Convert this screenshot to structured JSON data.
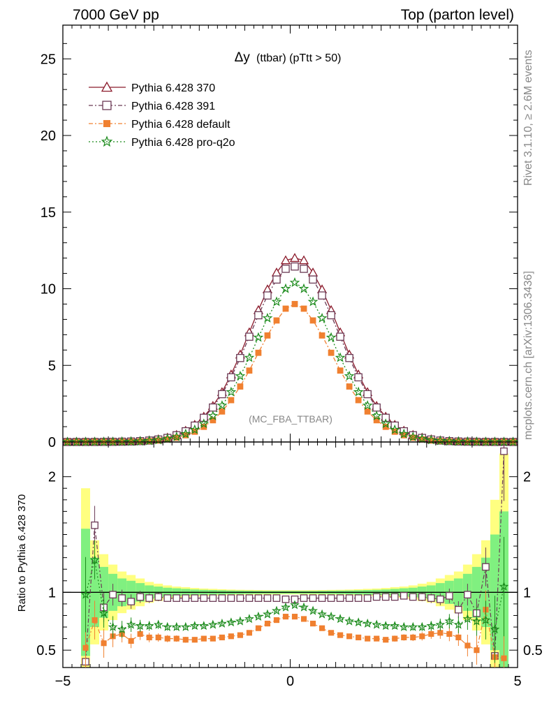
{
  "header": {
    "left": "7000 GeV pp",
    "right": "Top (parton level)"
  },
  "side": {
    "rivet": "Rivet 3.1.10, ≥ 2.6M events",
    "mcplots": "mcplots.cern.ch [arXiv:1306.3436]"
  },
  "chart_data": [
    {
      "type": "line",
      "title_main": "Δy",
      "title_sub": "(ttbar) (pTtt > 50)",
      "watermark": "(MC_FBA_TTBAR)",
      "xlim": [
        -5,
        5
      ],
      "ylim": [
        0,
        27.2
      ],
      "yticks": [
        0,
        5,
        10,
        15,
        20,
        25
      ],
      "legend_position": "top-left",
      "x": [
        -4.9,
        -4.7,
        -4.5,
        -4.3,
        -4.1,
        -3.9,
        -3.7,
        -3.5,
        -3.3,
        -3.1,
        -2.9,
        -2.7,
        -2.5,
        -2.3,
        -2.1,
        -1.9,
        -1.7,
        -1.5,
        -1.3,
        -1.1,
        -0.9,
        -0.7,
        -0.5,
        -0.3,
        -0.1,
        0.1,
        0.3,
        0.5,
        0.7,
        0.9,
        1.1,
        1.3,
        1.5,
        1.7,
        1.9,
        2.1,
        2.3,
        2.5,
        2.7,
        2.9,
        3.1,
        3.3,
        3.5,
        3.7,
        3.9,
        4.1,
        4.3,
        4.5,
        4.7,
        4.9
      ],
      "series": [
        {
          "name": "Pythia 6.428 370",
          "color": "#8b1a2b",
          "marker": "triangle-open",
          "dash": "solid",
          "values": [
            0.002,
            0.003,
            0.004,
            0.006,
            0.009,
            0.014,
            0.022,
            0.035,
            0.06,
            0.1,
            0.17,
            0.28,
            0.46,
            0.73,
            1.12,
            1.65,
            2.35,
            3.25,
            4.4,
            5.7,
            7.15,
            8.6,
            9.95,
            11.05,
            11.85,
            12.0,
            11.85,
            11.05,
            9.95,
            8.6,
            7.15,
            5.7,
            4.4,
            3.25,
            2.35,
            1.65,
            1.12,
            0.73,
            0.46,
            0.28,
            0.17,
            0.1,
            0.06,
            0.035,
            0.022,
            0.014,
            0.009,
            0.006,
            0.004,
            0.003
          ]
        },
        {
          "name": "Pythia 6.428 391",
          "color": "#6b3a55",
          "marker": "square-open",
          "dash": "dashdot",
          "values": [
            0.002,
            0.003,
            0.004,
            0.005,
            0.008,
            0.013,
            0.021,
            0.033,
            0.056,
            0.094,
            0.16,
            0.265,
            0.44,
            0.7,
            1.07,
            1.58,
            2.25,
            3.12,
            4.22,
            5.48,
            6.87,
            8.27,
            9.56,
            10.6,
            11.3,
            11.45,
            11.3,
            10.6,
            9.56,
            8.27,
            6.87,
            5.48,
            4.22,
            3.12,
            2.25,
            1.58,
            1.07,
            0.7,
            0.44,
            0.265,
            0.16,
            0.094,
            0.056,
            0.033,
            0.021,
            0.013,
            0.008,
            0.005,
            0.004,
            0.003
          ]
        },
        {
          "name": "Pythia 6.428 default",
          "color": "#f08030",
          "marker": "square-filled",
          "dash": "dashdot",
          "values": [
            0.002,
            0.002,
            0.003,
            0.004,
            0.006,
            0.009,
            0.014,
            0.022,
            0.037,
            0.06,
            0.1,
            0.17,
            0.28,
            0.44,
            0.67,
            0.99,
            1.42,
            1.99,
            2.73,
            3.62,
            4.66,
            5.82,
            6.95,
            7.93,
            8.7,
            9.0,
            8.7,
            7.93,
            6.95,
            5.82,
            4.66,
            3.62,
            2.73,
            1.99,
            1.42,
            0.99,
            0.67,
            0.44,
            0.28,
            0.17,
            0.1,
            0.06,
            0.037,
            0.022,
            0.014,
            0.009,
            0.006,
            0.004,
            0.003,
            0.002
          ]
        },
        {
          "name": "Pythia 6.428 pro-q2o",
          "color": "#1a8a1a",
          "marker": "star",
          "dash": "dotted",
          "values": [
            0.002,
            0.003,
            0.004,
            0.005,
            0.007,
            0.011,
            0.017,
            0.027,
            0.045,
            0.074,
            0.124,
            0.204,
            0.333,
            0.525,
            0.8,
            1.19,
            1.7,
            2.38,
            3.26,
            4.3,
            5.5,
            6.82,
            8.08,
            9.15,
            10.0,
            10.4,
            10.0,
            9.15,
            8.08,
            6.82,
            5.5,
            4.3,
            3.26,
            2.38,
            1.7,
            1.19,
            0.8,
            0.525,
            0.333,
            0.204,
            0.124,
            0.074,
            0.045,
            0.027,
            0.017,
            0.011,
            0.007,
            0.005,
            0.004,
            0.003
          ]
        }
      ]
    },
    {
      "type": "line",
      "ylabel": "Ratio to Pythia 6.428 370",
      "xlim": [
        -5,
        5
      ],
      "ylim": [
        0.35,
        2.3
      ],
      "yticks": [
        0.5,
        1,
        2
      ],
      "xticks": [
        -5,
        0,
        5
      ],
      "reference": 1,
      "x": [
        -4.5,
        -4.3,
        -4.1,
        -3.9,
        -3.7,
        -3.5,
        -3.3,
        -3.1,
        -2.9,
        -2.7,
        -2.5,
        -2.3,
        -2.1,
        -1.9,
        -1.7,
        -1.5,
        -1.3,
        -1.1,
        -0.9,
        -0.7,
        -0.5,
        -0.3,
        -0.1,
        0.1,
        0.3,
        0.5,
        0.7,
        0.9,
        1.1,
        1.3,
        1.5,
        1.7,
        1.9,
        2.1,
        2.3,
        2.5,
        2.7,
        2.9,
        3.1,
        3.3,
        3.5,
        3.7,
        3.9,
        4.1,
        4.3,
        4.5,
        4.7
      ],
      "band_green": [
        0.55,
        0.3,
        0.22,
        0.16,
        0.12,
        0.1,
        0.08,
        0.06,
        0.05,
        0.04,
        0.035,
        0.03,
        0.025,
        0.022,
        0.02,
        0.018,
        0.016,
        0.015,
        0.014,
        0.013,
        0.012,
        0.012,
        0.012,
        0.012,
        0.012,
        0.012,
        0.013,
        0.014,
        0.015,
        0.016,
        0.018,
        0.02,
        0.022,
        0.025,
        0.03,
        0.035,
        0.04,
        0.05,
        0.06,
        0.08,
        0.1,
        0.12,
        0.16,
        0.22,
        0.3,
        0.5,
        0.7
      ],
      "band_yellow": [
        0.9,
        0.45,
        0.33,
        0.24,
        0.18,
        0.15,
        0.12,
        0.09,
        0.075,
        0.06,
        0.05,
        0.045,
        0.038,
        0.033,
        0.03,
        0.027,
        0.024,
        0.022,
        0.021,
        0.02,
        0.019,
        0.018,
        0.018,
        0.018,
        0.018,
        0.019,
        0.02,
        0.021,
        0.022,
        0.024,
        0.027,
        0.03,
        0.033,
        0.038,
        0.045,
        0.05,
        0.06,
        0.075,
        0.09,
        0.12,
        0.15,
        0.18,
        0.24,
        0.33,
        0.45,
        0.8,
        1.2
      ],
      "series": [
        {
          "name": "Pythia 6.428 391",
          "color": "#6b3a55",
          "marker": "square-open",
          "dash": "dashdot",
          "values": [
            0.4,
            1.58,
            0.87,
            0.98,
            0.95,
            0.92,
            0.96,
            0.95,
            0.96,
            0.95,
            0.95,
            0.95,
            0.95,
            0.95,
            0.95,
            0.95,
            0.95,
            0.95,
            0.95,
            0.95,
            0.95,
            0.95,
            0.94,
            0.94,
            0.95,
            0.95,
            0.95,
            0.95,
            0.95,
            0.95,
            0.95,
            0.95,
            0.96,
            0.96,
            0.96,
            0.97,
            0.96,
            0.96,
            0.95,
            0.94,
            0.97,
            0.85,
            0.98,
            0.82,
            1.22,
            0.45,
            2.22
          ]
        },
        {
          "name": "Pythia 6.428 default",
          "color": "#f08030",
          "marker": "square-filled",
          "dash": "dashdot",
          "values": [
            0.52,
            0.76,
            0.56,
            0.62,
            0.64,
            0.58,
            0.64,
            0.61,
            0.61,
            0.6,
            0.6,
            0.59,
            0.59,
            0.6,
            0.6,
            0.61,
            0.62,
            0.63,
            0.65,
            0.69,
            0.73,
            0.76,
            0.79,
            0.79,
            0.77,
            0.73,
            0.69,
            0.65,
            0.63,
            0.62,
            0.61,
            0.6,
            0.6,
            0.59,
            0.6,
            0.61,
            0.61,
            0.62,
            0.64,
            0.65,
            0.64,
            0.61,
            0.54,
            0.5,
            0.85,
            0.44,
            0.43
          ]
        },
        {
          "name": "Pythia 6.428 pro-q2o",
          "color": "#1a8a1a",
          "marker": "star",
          "dash": "dotted",
          "values": [
            0.98,
            1.28,
            0.82,
            0.7,
            0.68,
            0.72,
            0.71,
            0.71,
            0.72,
            0.7,
            0.7,
            0.7,
            0.71,
            0.71,
            0.72,
            0.73,
            0.74,
            0.75,
            0.77,
            0.79,
            0.81,
            0.84,
            0.87,
            0.89,
            0.87,
            0.84,
            0.81,
            0.79,
            0.77,
            0.75,
            0.74,
            0.73,
            0.72,
            0.71,
            0.71,
            0.7,
            0.7,
            0.7,
            0.71,
            0.72,
            0.75,
            0.72,
            0.77,
            0.75,
            0.76,
            0.68,
            1.05
          ]
        }
      ]
    }
  ]
}
